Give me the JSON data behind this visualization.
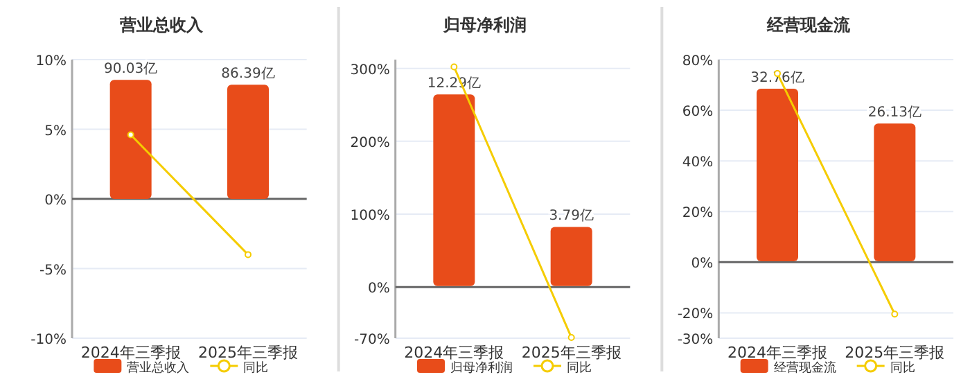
{
  "chart_data": [
    {
      "type": "bar",
      "title": "营业总收入",
      "categories": [
        "2024年三季报",
        "2025年三季报"
      ],
      "series": [
        {
          "name": "营业总收入",
          "axis": "y2",
          "color": "#e84c1a",
          "values": [
            90.03,
            86.39
          ],
          "value_labels": [
            "90.03亿",
            "86.39亿"
          ]
        },
        {
          "name": "同比",
          "type": "line",
          "color": "#f5cc00",
          "values": [
            4.6,
            -4.0
          ],
          "marker": "circle"
        }
      ],
      "ylim": [
        -10,
        10
      ],
      "yticks": [
        {
          "value": -10,
          "label": "-10%"
        },
        {
          "value": -5,
          "label": "-5%"
        },
        {
          "value": 0,
          "label": "0%"
        },
        {
          "value": 5,
          "label": "5%"
        },
        {
          "value": 10,
          "label": "10%"
        }
      ],
      "y2lim": [
        -105.4,
        105.4
      ],
      "tick_labels": "x",
      "grid": "y",
      "legend": "bottom"
    },
    {
      "type": "bar",
      "title": "归母净利润",
      "categories": [
        "2024年三季报",
        "2025年三季报"
      ],
      "series": [
        {
          "name": "归母净利润",
          "axis": "y2",
          "color": "#e84c1a",
          "values": [
            12.29,
            3.79
          ],
          "value_labels": [
            "12.29亿",
            "3.79亿"
          ]
        },
        {
          "name": "同比",
          "type": "line",
          "color": "#f5cc00",
          "values": [
            302,
            -69
          ],
          "marker": "circle"
        }
      ],
      "ylim": [
        -70,
        312
      ],
      "yticks": [
        {
          "value": -70,
          "label": "-70%"
        },
        {
          "value": 0,
          "label": "0%"
        },
        {
          "value": 100,
          "label": "100%"
        },
        {
          "value": 200,
          "label": "200%"
        },
        {
          "value": 300,
          "label": "300%"
        }
      ],
      "y2lim": [
        -3.35,
        14.53
      ],
      "tick_labels": "x",
      "grid": "y",
      "legend": "bottom"
    },
    {
      "type": "bar",
      "title": "经营现金流",
      "categories": [
        "2024年三季报",
        "2025年三季报"
      ],
      "series": [
        {
          "name": "经营现金流",
          "axis": "y2",
          "color": "#e84c1a",
          "values": [
            32.76,
            26.13
          ],
          "value_labels": [
            "32.76亿",
            "26.13亿"
          ]
        },
        {
          "name": "同比",
          "type": "line",
          "color": "#f5cc00",
          "values": [
            74.5,
            -20.5
          ],
          "marker": "circle"
        }
      ],
      "ylim": [
        -30,
        80
      ],
      "yticks": [
        {
          "value": -30,
          "label": "-30%"
        },
        {
          "value": -20,
          "label": "-20%"
        },
        {
          "value": 0,
          "label": "0%"
        },
        {
          "value": 20,
          "label": "20%"
        },
        {
          "value": 40,
          "label": "40%"
        },
        {
          "value": 60,
          "label": "60%"
        },
        {
          "value": 80,
          "label": "80%"
        }
      ],
      "y2lim": [
        -14.6,
        38.27
      ],
      "tick_labels": "x",
      "grid": "y",
      "legend": "bottom"
    }
  ]
}
